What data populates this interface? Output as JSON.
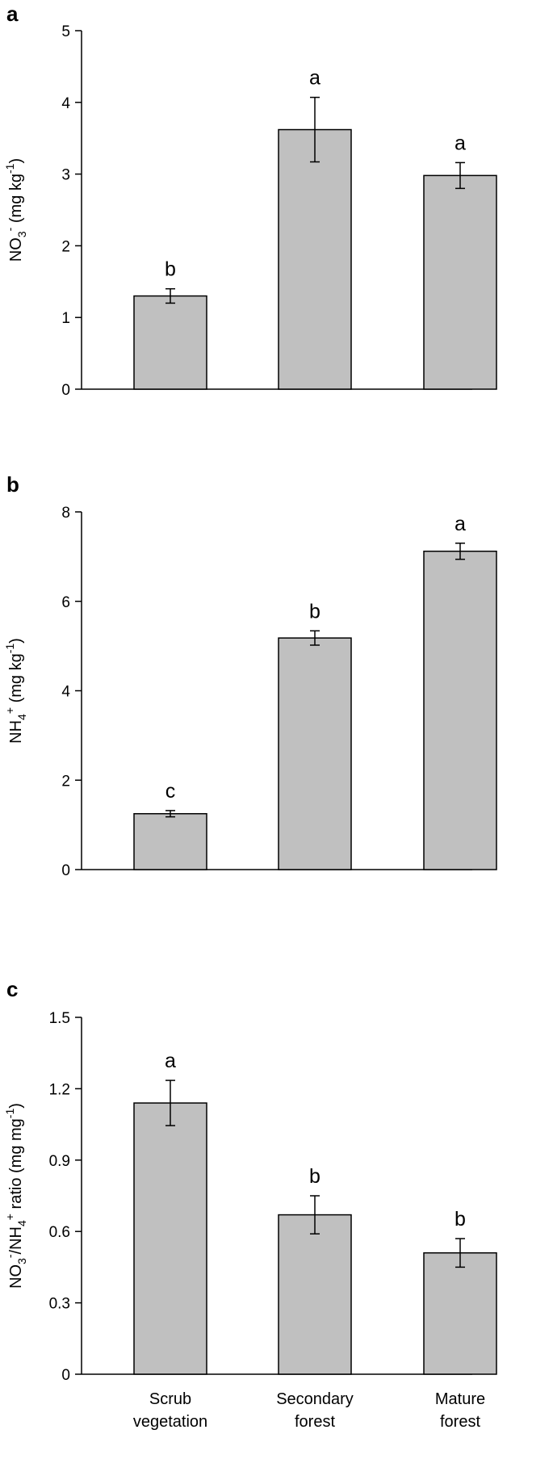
{
  "chart_data": [
    {
      "type": "bar",
      "panel": "a",
      "categories": [
        "Scrub vegetation",
        "Secondary forest",
        "Mature forest"
      ],
      "values": [
        1.3,
        3.62,
        2.98
      ],
      "errors": [
        0.1,
        0.45,
        0.18
      ],
      "significance": [
        "b",
        "a",
        "a"
      ],
      "ylabel": "NO3- (mg kg-1)",
      "ylim": [
        0,
        5
      ],
      "yticks": [
        0,
        1,
        2,
        3,
        4,
        5
      ],
      "ytick_labels": [
        "0",
        "1",
        "2",
        "3",
        "4",
        "5"
      ],
      "bar_color": "#c0c0c0",
      "grid": false
    },
    {
      "type": "bar",
      "panel": "b",
      "categories": [
        "Scrub vegetation",
        "Secondary forest",
        "Mature forest"
      ],
      "values": [
        1.25,
        5.18,
        7.12
      ],
      "errors": [
        0.07,
        0.16,
        0.18
      ],
      "significance": [
        "c",
        "b",
        "a"
      ],
      "ylabel": "NH4+ (mg kg-1)",
      "ylim": [
        0,
        8
      ],
      "yticks": [
        0,
        2,
        4,
        6,
        8
      ],
      "ytick_labels": [
        "0",
        "2",
        "4",
        "6",
        "8"
      ],
      "bar_color": "#c0c0c0",
      "grid": false
    },
    {
      "type": "bar",
      "panel": "c",
      "categories": [
        "Scrub vegetation",
        "Secondary forest",
        "Mature forest"
      ],
      "category_lines": [
        [
          "Scrub",
          "vegetation"
        ],
        [
          "Secondary",
          "forest"
        ],
        [
          "Mature",
          "forest"
        ]
      ],
      "values": [
        1.14,
        0.67,
        0.51
      ],
      "errors": [
        0.095,
        0.08,
        0.06
      ],
      "significance": [
        "a",
        "b",
        "b"
      ],
      "ylabel": "NO3-/NH4+ ratio (mg mg-1)",
      "ylim": [
        0,
        1.5
      ],
      "yticks": [
        0,
        0.3,
        0.6,
        0.9,
        1.2,
        1.5
      ],
      "ytick_labels": [
        "0",
        "0.3",
        "0.6",
        "0.9",
        "1.2",
        "1.5"
      ],
      "bar_color": "#c0c0c0",
      "grid": false
    }
  ]
}
